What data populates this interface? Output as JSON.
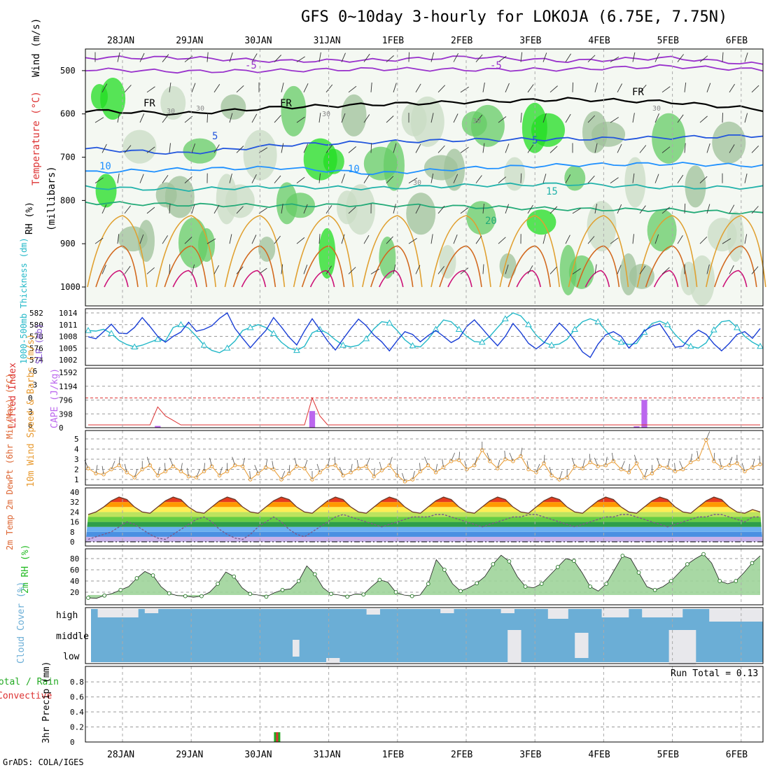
{
  "title": "GFS 0~10day 3-hourly for LOKOJA (6.75E, 7.75N)",
  "credit": "GrADS: COLA/IGES",
  "colors": {
    "rh_green": "#33cc33",
    "thick_cyan": "#22b8c8",
    "slp_blue": "#1a3fd6",
    "lifted_red": "#dd3333",
    "cape_purple": "#bb66ee",
    "wind_orange": "#e89a30",
    "rh2m_green": "#22bb22",
    "cloud_blue": "#6baed6",
    "precip_green": "#22aa22"
  },
  "chart_data": [
    {
      "type": "heatmap",
      "name": "upper-air cross section",
      "ylabel_parts": [
        "RH (%)",
        "Temperature (°C)",
        "Wind (m/s)"
      ],
      "yunit": "(millibars)",
      "ylim": [
        1000,
        450
      ],
      "yticks": [
        "500",
        "600",
        "700",
        "800",
        "900",
        "1000"
      ],
      "date_labels": [
        "28JAN",
        "29JAN",
        "30JAN",
        "31JAN",
        "1FEB",
        "2FEB",
        "3FEB",
        "4FEB",
        "5FEB",
        "6FEB"
      ],
      "isotherm_labels": [
        "-5",
        "-5",
        "FR",
        "FR",
        "FR",
        "5",
        "5",
        "10",
        "10",
        "15",
        "20"
      ],
      "rh_labels": [
        "30",
        "30",
        "30",
        "30",
        "30",
        "30"
      ],
      "isotherms": [
        {
          "temp": -5,
          "level": [
            470,
            470,
            478,
            476,
            468,
            478,
            470,
            486
          ],
          "color": "#9932cc"
        },
        {
          "temp": -5,
          "level": [
            497,
            502,
            500,
            496,
            498,
            497,
            490,
            498
          ],
          "color": "#9932cc"
        },
        {
          "temp": 0,
          "level": [
            592,
            600,
            585,
            578,
            572,
            566,
            572,
            590
          ],
          "color": "#000000"
        },
        {
          "temp": 5,
          "level": [
            680,
            692,
            672,
            665,
            660,
            658,
            655,
            650
          ],
          "color": "#2255dd"
        },
        {
          "temp": 10,
          "level": [
            735,
            728,
            724,
            738,
            725,
            718,
            715,
            720
          ],
          "color": "#1e90ff"
        },
        {
          "temp": 15,
          "level": [
            770,
            775,
            768,
            772,
            765,
            762,
            770,
            770
          ],
          "color": "#20b2aa"
        },
        {
          "temp": 20,
          "level": [
            805,
            810,
            812,
            810,
            815,
            820,
            822,
            830
          ],
          "color": "#22aa77"
        }
      ]
    },
    {
      "type": "line",
      "name": "thickness and SLP",
      "ylabel_left": "1000-500mb Thickness (dm)",
      "ylabel_right": "SLP (mb)",
      "yticks_left": [
        "582",
        "580",
        "578",
        "576",
        "574"
      ],
      "yticks_right": [
        "1014",
        "1011",
        "1008",
        "1005",
        "1002"
      ],
      "series": [
        {
          "name": "Thickness",
          "color": "#22b8c8",
          "values": [
            579,
            578.9,
            579.2,
            578.5,
            577.3,
            576.6,
            576.2,
            576.5,
            577,
            577.5,
            577.2,
            579.5,
            580,
            579.4,
            578,
            576.5,
            575.6,
            575.2,
            576,
            577.2,
            579,
            579.5,
            580,
            579.5,
            578.5,
            577,
            576,
            575.6,
            576.3,
            578.6,
            579.2,
            578.5,
            577.4,
            576.5,
            576.2,
            576.5,
            577.6,
            579.3,
            580.5,
            580.3,
            579,
            577.4,
            576.4,
            576.2,
            577.5,
            579.2,
            580.8,
            580.5,
            579.2,
            578,
            577.1,
            577,
            578,
            579.5,
            581,
            582,
            581.5,
            580,
            578.2,
            577,
            576.5,
            576.7,
            577.5,
            579.2,
            580.5,
            581,
            580.5,
            579,
            577.5,
            577,
            576.6,
            576.8,
            578.7,
            580.2,
            580.6,
            580,
            578.3,
            577,
            576.3,
            576,
            576.9,
            579.1,
            580.5,
            580.7,
            579.5,
            578,
            577,
            576.3
          ]
        },
        {
          "name": "SLP",
          "color": "#1a3fd6",
          "values": [
            1007.9,
            1007.4,
            1009.2,
            1011.1,
            1008.8,
            1008.7,
            1010.3,
            1012.8,
            1010.5,
            1008,
            1006.5,
            1008,
            1009.1,
            1011.6,
            1009.3,
            1009.8,
            1010.7,
            1012.6,
            1014,
            1010,
            1007.5,
            1005.1,
            1007.4,
            1009.5,
            1012.8,
            1010.4,
            1007.8,
            1005.8,
            1009.4,
            1012.5,
            1009.7,
            1006.8,
            1004.5,
            1007.3,
            1010,
            1012.4,
            1010.7,
            1008.3,
            1006.6,
            1004.3,
            1006.9,
            1009.2,
            1008.5,
            1006.6,
            1008.2,
            1009.5,
            1008,
            1006.4,
            1007.5,
            1010.5,
            1012.2,
            1010,
            1007.7,
            1005.6,
            1008,
            1011.3,
            1009,
            1006.2,
            1004.8,
            1006.3,
            1009,
            1011.4,
            1009.5,
            1006.9,
            1004,
            1002.6,
            1006,
            1008.4,
            1009.2,
            1008,
            1005,
            1007,
            1009.4,
            1010.6,
            1011.2,
            1008.3,
            1005.2,
            1005.5,
            1008,
            1009.6,
            1008.5,
            1006.1,
            1004.3,
            1006.2,
            1008.5,
            1009.2,
            1007.5,
            1010
          ]
        }
      ]
    },
    {
      "type": "bar",
      "name": "CAPE and lifted index",
      "ylabel_left": "Lifted Index",
      "ylabel_right": "CAPE (J/kg)",
      "yticks_left": [
        "-6",
        "-3",
        "0",
        "3",
        "6"
      ],
      "yticks_right": [
        "1592",
        "1194",
        "796",
        "398",
        "0"
      ],
      "cape": [
        0,
        0,
        0,
        0,
        0,
        0,
        0,
        0,
        0,
        50,
        0,
        0,
        0,
        0,
        0,
        0,
        0,
        0,
        0,
        0,
        0,
        0,
        0,
        0,
        0,
        0,
        0,
        0,
        0,
        480,
        0,
        0,
        0,
        0,
        0,
        0,
        0,
        0,
        0,
        0,
        0,
        0,
        0,
        0,
        0,
        0,
        0,
        0,
        0,
        0,
        0,
        0,
        0,
        0,
        0,
        0,
        0,
        0,
        0,
        0,
        0,
        0,
        0,
        0,
        0,
        0,
        0,
        0,
        0,
        0,
        0,
        40,
        800,
        0,
        0,
        0,
        0,
        0,
        0,
        0,
        0,
        0,
        0,
        0,
        0,
        0,
        0,
        0
      ],
      "lifted": [
        6,
        6,
        6,
        6,
        6,
        6,
        6,
        6,
        6,
        2,
        4,
        5,
        6,
        6,
        6,
        6,
        6,
        6,
        6,
        6,
        6,
        6,
        6,
        6,
        6,
        6,
        6,
        6,
        6,
        0,
        4,
        6,
        6,
        6,
        6,
        6,
        6,
        6,
        6,
        6,
        6,
        6,
        6,
        6,
        6,
        6,
        6,
        6,
        6,
        6,
        6,
        6,
        6,
        6,
        6,
        6,
        6,
        6,
        6,
        6,
        6,
        6,
        6,
        6,
        6,
        6,
        6,
        6,
        6,
        6,
        6,
        6,
        6,
        6,
        6,
        6,
        6,
        6,
        6,
        6,
        6,
        6,
        6,
        6,
        6,
        6,
        6,
        6
      ]
    },
    {
      "type": "line",
      "name": "10m wind speed",
      "ylabel": "10m Wind Speed & Barbs (m/s)",
      "yticks": [
        "5",
        "4",
        "3",
        "2",
        "1"
      ],
      "series": [
        {
          "name": "Wind speed",
          "color": "#e89a30",
          "values": [
            2.1,
            1.6,
            1.5,
            2.0,
            2.4,
            1.7,
            1.2,
            2.0,
            2.4,
            1.4,
            1.8,
            2.3,
            1.8,
            1.3,
            1.2,
            1.8,
            2.3,
            1.4,
            1.8,
            2.4,
            2.3,
            1.0,
            1.6,
            2.2,
            2.0,
            1.0,
            1.6,
            2.3,
            2.1,
            1.0,
            1.7,
            2.3,
            2.4,
            1.4,
            1.7,
            2.1,
            2.3,
            1.3,
            1.9,
            2.4,
            1.4,
            0.8,
            1.0,
            1.8,
            2.4,
            1.7,
            2.2,
            2.8,
            2.9,
            2.0,
            2.4,
            3.9,
            2.8,
            2.1,
            3.0,
            2.8,
            3.3,
            2.0,
            1.7,
            2.6,
            1.4,
            1.0,
            1.2,
            2.3,
            2.1,
            2.7,
            2.3,
            2.4,
            2.8,
            2.0,
            1.7,
            2.6,
            1.2,
            1.6,
            2.3,
            2.2,
            1.8,
            2.0,
            2.7,
            3.0,
            4.9,
            2.8,
            2.2,
            2.4,
            2.6,
            1.8,
            2.2,
            2.5
          ]
        }
      ]
    },
    {
      "type": "area",
      "name": "2m temperature",
      "ylabel": "2m Temp 2m DewPt (6hr Min/Max) (°C)",
      "yticks": [
        "40",
        "32",
        "24",
        "16",
        "8",
        "0"
      ],
      "series": [
        {
          "name": "2m Temp",
          "color": "#6b3a2a",
          "values": [
            22,
            24,
            28,
            33,
            36,
            34,
            28,
            24,
            23,
            28,
            33,
            36,
            34,
            28,
            24,
            23,
            28,
            33,
            36,
            34,
            28,
            24,
            23,
            28,
            33,
            36,
            34,
            28,
            24,
            23,
            28,
            33,
            36,
            34,
            28,
            24,
            23,
            28,
            33,
            36,
            34,
            28,
            24,
            23,
            28,
            33,
            36,
            34,
            28,
            24,
            23,
            28,
            33,
            36,
            34,
            28,
            24,
            23,
            28,
            33,
            36,
            34,
            28,
            24,
            23,
            28,
            33,
            36,
            34,
            28,
            24,
            23,
            28,
            33,
            36,
            34,
            28,
            24,
            23,
            28,
            33,
            36,
            34,
            28,
            24,
            23,
            26,
            24
          ]
        },
        {
          "name": "2m DewPt",
          "color": "#7a5a8a",
          "values": [
            2,
            4,
            6,
            8,
            12,
            16,
            14,
            10,
            6,
            3,
            2,
            6,
            10,
            14,
            18,
            20,
            16,
            10,
            6,
            3,
            2,
            6,
            12,
            16,
            20,
            16,
            10,
            6,
            4,
            8,
            12,
            16,
            20,
            22,
            20,
            18,
            16,
            14,
            12,
            14,
            16,
            18,
            20,
            20,
            20,
            22,
            22,
            20,
            18,
            16,
            14,
            12,
            14,
            16,
            18,
            20,
            20,
            22,
            22,
            20,
            18,
            16,
            14,
            12,
            14,
            16,
            18,
            20,
            20,
            22,
            22,
            20,
            18,
            16,
            14,
            12,
            14,
            16,
            18,
            20,
            20,
            22,
            22,
            20,
            18,
            16,
            20,
            20
          ]
        }
      ]
    },
    {
      "type": "area",
      "name": "2m relative humidity",
      "ylabel": "2m RH (%)",
      "yticks": [
        "80",
        "60",
        "40",
        "20"
      ],
      "series": [
        {
          "name": "2m RH",
          "color": "#22bb22",
          "values": [
            10,
            9,
            14,
            18,
            24,
            30,
            45,
            57,
            50,
            30,
            18,
            14,
            13,
            11,
            13,
            20,
            35,
            56,
            48,
            28,
            17,
            15,
            12,
            19,
            24,
            26,
            40,
            67,
            52,
            28,
            17,
            15,
            12,
            17,
            16,
            30,
            42,
            38,
            20,
            15,
            13,
            15,
            35,
            78,
            60,
            35,
            22,
            28,
            36,
            48,
            70,
            86,
            75,
            48,
            30,
            28,
            35,
            50,
            65,
            80,
            76,
            55,
            30,
            22,
            35,
            60,
            85,
            80,
            55,
            30,
            24,
            30,
            40,
            55,
            70,
            80,
            88,
            72,
            40,
            35,
            40,
            55,
            72,
            85
          ]
        }
      ]
    },
    {
      "type": "bar",
      "name": "cloud cover",
      "ylabel": "Cloud Cover (%)",
      "yticks": [
        "high",
        "middle",
        "low"
      ]
    },
    {
      "type": "bar",
      "name": "3hr precipitation",
      "ylabel": "3hr Precip (mm)",
      "legend": [
        "Total / Rain",
        "Convective"
      ],
      "run_total": "Run Total = 0.13",
      "yticks": [
        "0.8",
        "0.6",
        "0.4",
        "0.2",
        "0"
      ],
      "bars": [
        {
          "date": "30JAN",
          "value": 0.13
        }
      ]
    }
  ]
}
